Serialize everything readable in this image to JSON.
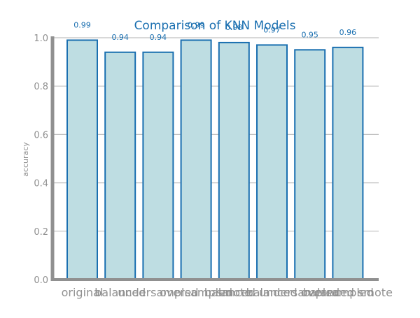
{
  "chart_data": {
    "type": "bar",
    "title": "Comparison of KNN Models",
    "xlabel": "",
    "ylabel": "accuracy",
    "categories": [
      "original",
      "balanced",
      "undersampled",
      "oversampled",
      "smote",
      "balanced undersampled",
      "balanced oversampled",
      "balanced smote"
    ],
    "values": [
      0.99,
      0.94,
      0.94,
      0.99,
      0.98,
      0.97,
      0.95,
      0.96
    ],
    "value_labels": [
      "0.99",
      "0.94",
      "0.94",
      "0.99",
      "0.98",
      "0.97",
      "0.95",
      "0.96"
    ],
    "ylim": [
      0,
      1.0
    ],
    "yticks": [
      "0.0",
      "0.2",
      "0.4",
      "0.6",
      "0.8",
      "1.0"
    ],
    "grid": "horizontal",
    "legend": "none",
    "colors": {
      "bar_fill": "#bedde2",
      "bar_edge": "#1a6fb0",
      "title": "#1a6fb0",
      "data_labels": "#1a6fb0",
      "axis": "#909090",
      "grid": "#c0c0c0"
    }
  }
}
